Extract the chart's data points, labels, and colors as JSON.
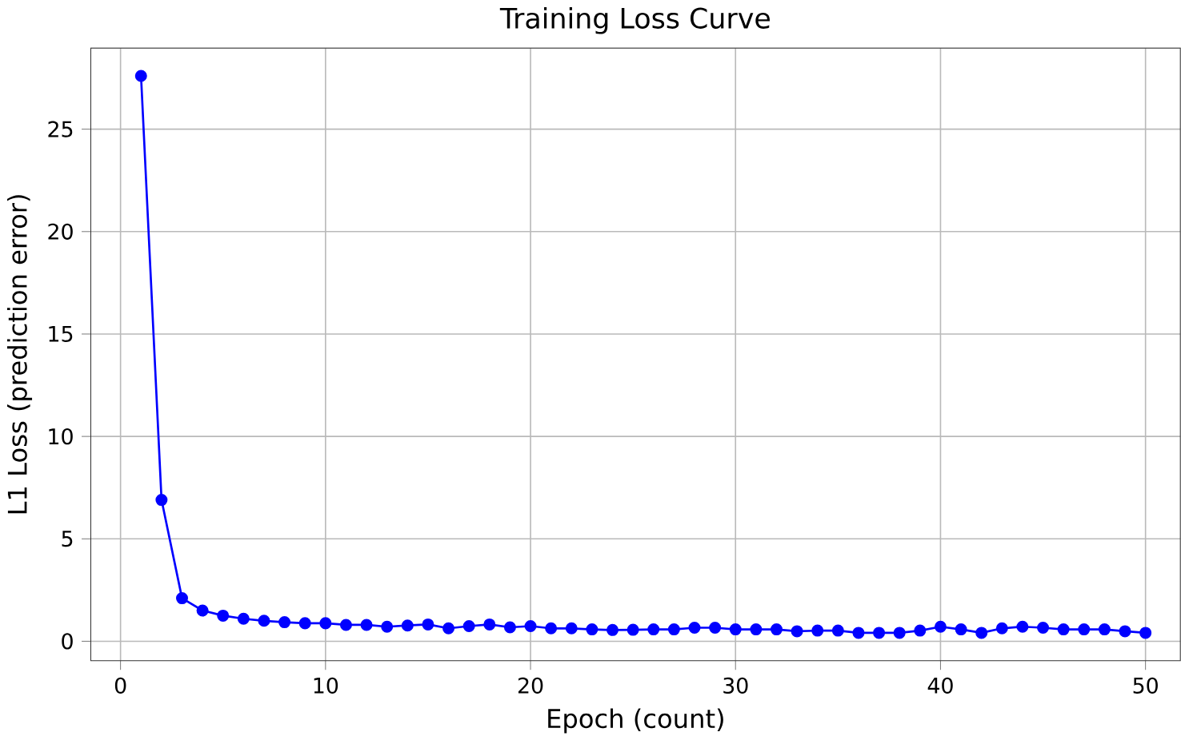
{
  "chart_data": {
    "type": "line",
    "title": "Training Loss Curve",
    "xlabel": "Epoch (count)",
    "ylabel": "L1 Loss (prediction error)",
    "x": [
      1,
      2,
      3,
      4,
      5,
      6,
      7,
      8,
      9,
      10,
      11,
      12,
      13,
      14,
      15,
      16,
      17,
      18,
      19,
      20,
      21,
      22,
      23,
      24,
      25,
      26,
      27,
      28,
      29,
      30,
      31,
      32,
      33,
      34,
      35,
      36,
      37,
      38,
      39,
      40,
      41,
      42,
      43,
      44,
      45,
      46,
      47,
      48,
      49,
      50
    ],
    "series": [
      {
        "color": "#0000ff",
        "values": [
          27.6,
          6.9,
          2.1,
          1.5,
          1.25,
          1.1,
          1.0,
          0.93,
          0.88,
          0.88,
          0.8,
          0.8,
          0.71,
          0.77,
          0.82,
          0.63,
          0.74,
          0.82,
          0.68,
          0.74,
          0.63,
          0.63,
          0.58,
          0.55,
          0.56,
          0.58,
          0.58,
          0.66,
          0.66,
          0.58,
          0.58,
          0.58,
          0.49,
          0.52,
          0.52,
          0.41,
          0.41,
          0.41,
          0.52,
          0.71,
          0.58,
          0.41,
          0.63,
          0.71,
          0.66,
          0.58,
          0.58,
          0.58,
          0.49,
          0.41
        ]
      }
    ],
    "xlim": [
      -1.45,
      51.7
    ],
    "ylim": [
      -0.95,
      28.96
    ],
    "xticks": [
      0,
      10,
      20,
      30,
      40,
      50
    ],
    "yticks": [
      0,
      5,
      10,
      15,
      20,
      25
    ],
    "grid": true,
    "marker": "circle",
    "line_style": "solid"
  }
}
